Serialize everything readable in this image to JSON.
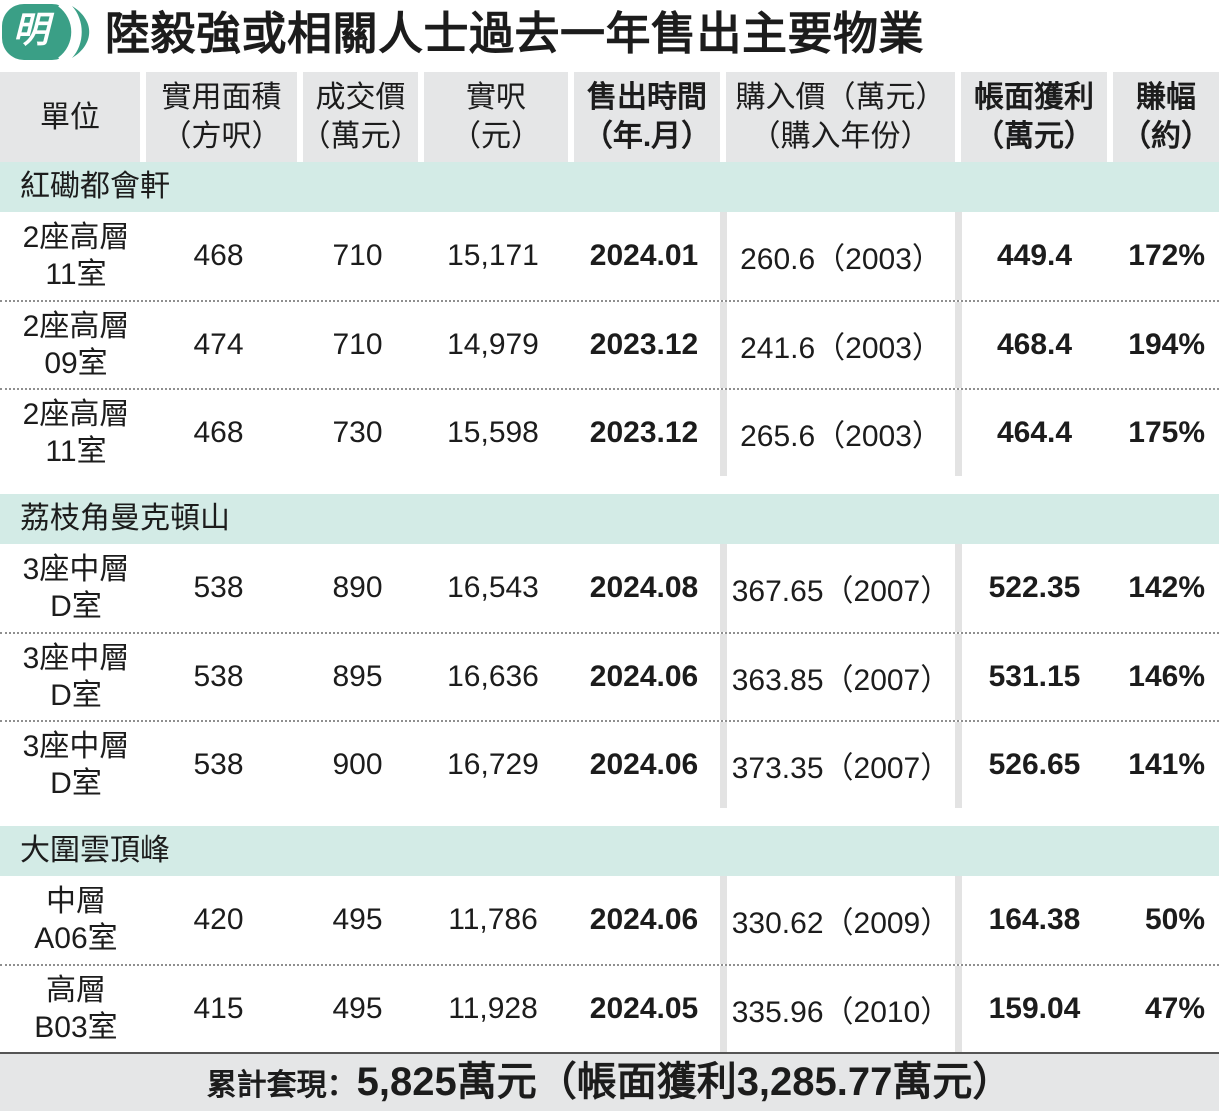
{
  "logo": {
    "text": "明"
  },
  "colors": {
    "brand_green": "#3a9f86",
    "header_bg": "#e5e6e7",
    "group_bg": "#d3ebe6",
    "footer_bg": "#e5e6e7",
    "column_divider": "#e3e3e3",
    "text": "#1c1c1c"
  },
  "chart_data": {
    "type": "table",
    "title": "陸毅強或相關人士過去一年售出主要物業",
    "columns": [
      {
        "label": "單位"
      },
      {
        "label": "實用面積",
        "sub": "（方呎）"
      },
      {
        "label": "成交價",
        "sub": "（萬元）"
      },
      {
        "label": "實呎",
        "sub": "（元）"
      },
      {
        "label": "售出時間",
        "sub": "（年.月）"
      },
      {
        "label": "購入價（萬元）",
        "sub": "（購入年份）"
      },
      {
        "label": "帳面獲利",
        "sub": "（萬元）"
      },
      {
        "label": "賺幅",
        "sub": "（約）"
      }
    ],
    "groups": [
      {
        "name": "紅磡都會軒",
        "rows": [
          {
            "unit": [
              "2座高層",
              "11室"
            ],
            "area": "468",
            "price": "710",
            "psf": "15,171",
            "sold": "2024.01",
            "bought": "260.6（2003）",
            "profit": "449.4",
            "gain": "172%"
          },
          {
            "unit": [
              "2座高層",
              "09室"
            ],
            "area": "474",
            "price": "710",
            "psf": "14,979",
            "sold": "2023.12",
            "bought": "241.6（2003）",
            "profit": "468.4",
            "gain": "194%"
          },
          {
            "unit": [
              "2座高層",
              "11室"
            ],
            "area": "468",
            "price": "730",
            "psf": "15,598",
            "sold": "2023.12",
            "bought": "265.6（2003）",
            "profit": "464.4",
            "gain": "175%"
          }
        ]
      },
      {
        "name": "荔枝角曼克頓山",
        "rows": [
          {
            "unit": [
              "3座中層",
              "D室"
            ],
            "area": "538",
            "price": "890",
            "psf": "16,543",
            "sold": "2024.08",
            "bought": "367.65（2007）",
            "profit": "522.35",
            "gain": "142%"
          },
          {
            "unit": [
              "3座中層",
              "D室"
            ],
            "area": "538",
            "price": "895",
            "psf": "16,636",
            "sold": "2024.06",
            "bought": "363.85（2007）",
            "profit": "531.15",
            "gain": "146%"
          },
          {
            "unit": [
              "3座中層",
              "D室"
            ],
            "area": "538",
            "price": "900",
            "psf": "16,729",
            "sold": "2024.06",
            "bought": "373.35（2007）",
            "profit": "526.65",
            "gain": "141%"
          }
        ]
      },
      {
        "name": "大圍雲頂峰",
        "rows": [
          {
            "unit": [
              "中層",
              "A06室"
            ],
            "area": "420",
            "price": "495",
            "psf": "11,786",
            "sold": "2024.06",
            "bought": "330.62（2009）",
            "profit": "164.38",
            "gain": "50%"
          },
          {
            "unit": [
              "高層",
              "B03室"
            ],
            "area": "415",
            "price": "495",
            "psf": "11,928",
            "sold": "2024.05",
            "bought": "335.96（2010）",
            "profit": "159.04",
            "gain": "47%"
          }
        ]
      }
    ],
    "total": {
      "label": "累計套現：",
      "value": "5,825萬元（帳面獲利3,285.77萬元）"
    }
  }
}
